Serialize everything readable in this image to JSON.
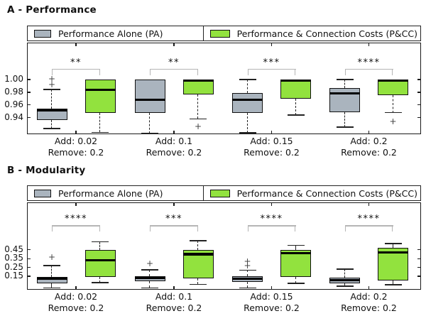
{
  "colors": {
    "pa_fill": "#aab4be",
    "pcc_fill": "#92e23e",
    "box_border": "#111111",
    "median": "#000000",
    "bracket": "#b5b5b5",
    "flier": "#444444",
    "axis": "#1a1a1a"
  },
  "legend": {
    "pa_label": "Performance Alone (PA)",
    "pcc_label": "Performance & Connection Costs (P&CC)"
  },
  "chart_data": [
    {
      "type": "boxplot",
      "panel": "A",
      "title": "A - Performance",
      "ylim": [
        0.914,
        1.058
      ],
      "yticks": {
        "values": [
          1.0,
          0.98,
          0.96,
          0.94
        ],
        "labels": [
          "1.00",
          "0.98",
          "0.96",
          "0.94"
        ]
      },
      "series_names": [
        "Performance Alone (PA)",
        "Performance & Connection Costs (P&CC)"
      ],
      "sig_line_y": 1.0165,
      "groups": [
        {
          "xlabel": [
            "Add: 0.02",
            "Remove: 0.2"
          ],
          "significance": "**",
          "pa": {
            "whislo": 0.923,
            "q1": 0.936,
            "med": 0.951,
            "q3": 0.954,
            "whishi": 0.984,
            "fliers": [
              0.991,
              1.0
            ]
          },
          "pcc": {
            "whislo": 0.917,
            "q1": 0.948,
            "med": 0.984,
            "q3": 1.0,
            "whishi": 1.0,
            "fliers": []
          }
        },
        {
          "xlabel": [
            "Add: 0.1",
            "Remove: 0.2"
          ],
          "significance": "**",
          "pa": {
            "whislo": 0.915,
            "q1": 0.947,
            "med": 0.968,
            "q3": 1.0,
            "whishi": 1.0,
            "fliers": []
          },
          "pcc": {
            "whislo": 0.938,
            "q1": 0.976,
            "med": 0.998,
            "q3": 1.0,
            "whishi": 1.0,
            "fliers": [
              0.925
            ]
          }
        },
        {
          "xlabel": [
            "Add: 0.15",
            "Remove: 0.2"
          ],
          "significance": "***",
          "pa": {
            "whislo": 0.916,
            "q1": 0.947,
            "med": 0.968,
            "q3": 0.979,
            "whishi": 1.0,
            "fliers": []
          },
          "pcc": {
            "whislo": 0.944,
            "q1": 0.97,
            "med": 0.998,
            "q3": 1.0,
            "whishi": 1.0,
            "fliers": []
          }
        },
        {
          "xlabel": [
            "Add: 0.2",
            "Remove: 0.2"
          ],
          "significance": "****",
          "pa": {
            "whislo": 0.925,
            "q1": 0.949,
            "med": 0.978,
            "q3": 0.987,
            "whishi": 1.0,
            "fliers": []
          },
          "pcc": {
            "whislo": 0.948,
            "q1": 0.975,
            "med": 0.998,
            "q3": 1.0,
            "whishi": 1.0,
            "fliers": [
              0.933
            ]
          }
        }
      ]
    },
    {
      "type": "boxplot",
      "panel": "B",
      "title": "B - Modularity",
      "ylim": [
        -0.001,
        0.985
      ],
      "yticks": {
        "values": [
          0.45,
          0.35,
          0.25,
          0.15
        ],
        "labels": [
          "0.45",
          "0.35",
          "0.25",
          "0.15"
        ]
      },
      "series_names": [
        "Performance Alone (PA)",
        "Performance & Connection Costs (P&CC)"
      ],
      "sig_line_y": 0.725,
      "groups": [
        {
          "xlabel": [
            "Add: 0.02",
            "Remove: 0.2"
          ],
          "significance": "****",
          "pa": {
            "whislo": 0.02,
            "q1": 0.07,
            "med": 0.125,
            "q3": 0.147,
            "whishi": 0.27,
            "fliers": [
              0.36
            ]
          },
          "pcc": {
            "whislo": 0.08,
            "q1": 0.145,
            "med": 0.33,
            "q3": 0.45,
            "whishi": 0.54,
            "fliers": []
          }
        },
        {
          "xlabel": [
            "Add: 0.1",
            "Remove: 0.2"
          ],
          "significance": "***",
          "pa": {
            "whislo": 0.02,
            "q1": 0.095,
            "med": 0.13,
            "q3": 0.155,
            "whishi": 0.225,
            "fliers": [
              0.285
            ]
          },
          "pcc": {
            "whislo": 0.06,
            "q1": 0.13,
            "med": 0.4,
            "q3": 0.45,
            "whishi": 0.55,
            "fliers": []
          }
        },
        {
          "xlabel": [
            "Add: 0.15",
            "Remove: 0.2"
          ],
          "significance": "****",
          "pa": {
            "whislo": 0.02,
            "q1": 0.09,
            "med": 0.12,
            "q3": 0.15,
            "whishi": 0.22,
            "fliers": [
              0.31,
              0.265
            ]
          },
          "pcc": {
            "whislo": 0.07,
            "q1": 0.14,
            "med": 0.41,
            "q3": 0.45,
            "whishi": 0.5,
            "fliers": []
          }
        },
        {
          "xlabel": [
            "Add: 0.2",
            "Remove: 0.2"
          ],
          "significance": "****",
          "pa": {
            "whislo": 0.04,
            "q1": 0.07,
            "med": 0.105,
            "q3": 0.135,
            "whishi": 0.23,
            "fliers": []
          },
          "pcc": {
            "whislo": 0.055,
            "q1": 0.105,
            "med": 0.42,
            "q3": 0.47,
            "whishi": 0.52,
            "fliers": []
          }
        }
      ]
    }
  ]
}
